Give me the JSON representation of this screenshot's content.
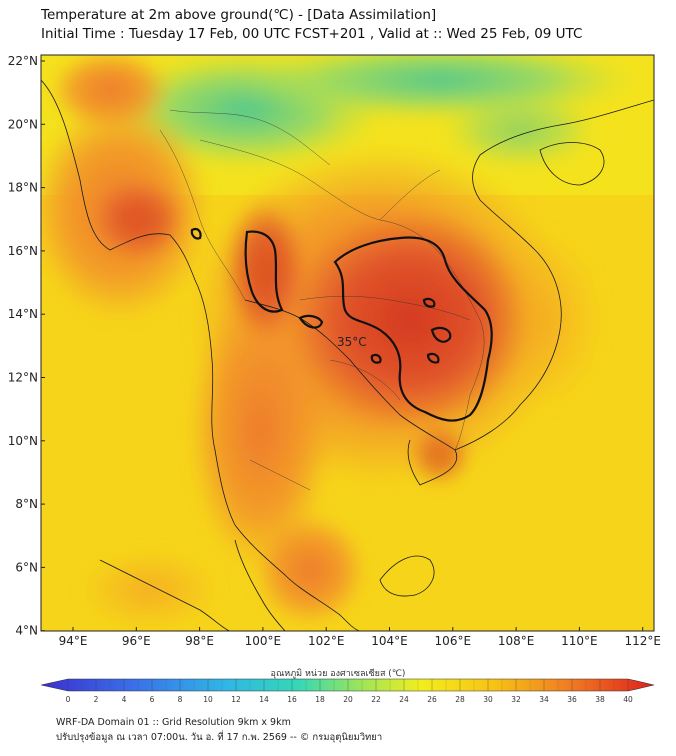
{
  "header": {
    "title": "Temperature at 2m above ground(℃) - [Data Assimilation]",
    "subtitle": "Initial Time : Tuesday 17 Feb, 00 UTC FCST+201 , Valid at :: Wed 25 Feb, 09 UTC"
  },
  "map": {
    "lat_labels": [
      "22°N",
      "20°N",
      "18°N",
      "16°N",
      "14°N",
      "12°N",
      "10°N",
      "8°N",
      "6°N",
      "4°N"
    ],
    "lon_labels": [
      "94°E",
      "96°E",
      "98°E",
      "100°E",
      "102°E",
      "104°E",
      "106°E",
      "108°E",
      "110°E",
      "112°E"
    ],
    "contour_label": "35°C",
    "colors": {
      "hot": "#d4391e",
      "warm": "#f08a2a",
      "mild": "#f6c21a",
      "cool": "#f4e31c",
      "cold": "#5dcf8a",
      "sea": "#f7d518"
    }
  },
  "colorbar": {
    "title": "อุณหภูมิ หน่วย องศาเซลเซียส (℃)",
    "ticks": [
      "0",
      "2",
      "4",
      "6",
      "8",
      "10",
      "12",
      "14",
      "16",
      "18",
      "20",
      "22",
      "24",
      "26",
      "28",
      "30",
      "32",
      "34",
      "36",
      "38",
      "40"
    ]
  },
  "footer": {
    "line1": "WRF-DA Domain 01 :: Grid Resolution 9km x 9km",
    "line2": "ปรับปรุงข้อมูล ณ เวลา 07:00น. วัน อ. ที่ 17 ก.พ. 2569 -- © กรมอุตุนิยมวิทยา"
  }
}
